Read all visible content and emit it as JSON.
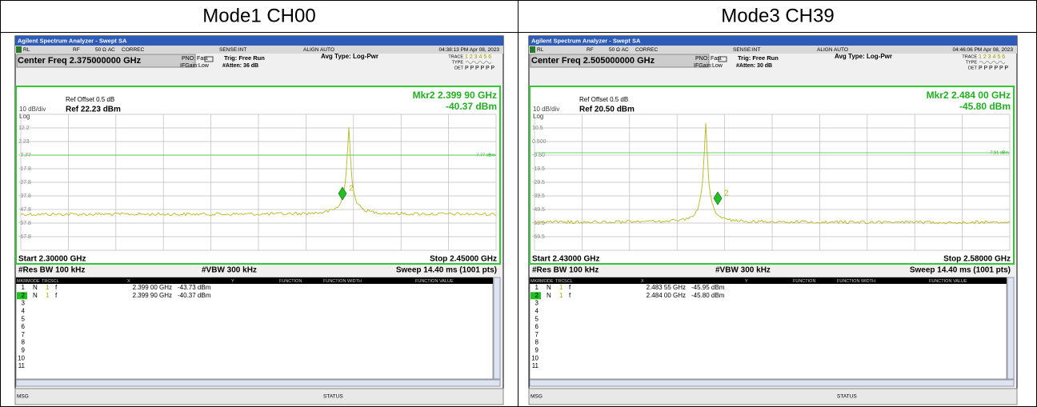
{
  "headers": [
    "Mode1 CH00",
    "Mode3 CH39"
  ],
  "panels": [
    {
      "title_bar": "Agilent Spectrum Analyzer - Swept SA",
      "status": [
        "RL",
        "RF",
        "50 Ω  AC",
        "CORREC",
        "SENSE:INT",
        "ALIGN AUTO",
        "04:38:13 PM Apr 08, 2023"
      ],
      "center_freq": "Center Freq 2.375000000 GHz",
      "pno": "PNO: Fast",
      "ifgain": "IFGain:Low",
      "trig": "Trig: Free Run",
      "atten": "#Atten: 36 dB",
      "avg_type": "Avg Type: Log-Pwr",
      "trace_label": "TRACE",
      "trace_nums": "1 2 3 4 5 6",
      "type_label": "TYPE",
      "det_label": "DET",
      "det": "P P P P P P",
      "ref_offset": "Ref Offset 0.5 dB",
      "scale": "10 dB/div",
      "ref": "Ref 22.23 dBm",
      "log": "Log",
      "marker_freq": "Mkr2 2.399 90 GHz",
      "marker_amp": "-40.37 dBm",
      "marker_num": "2",
      "y_labels": [
        "12.2",
        "2.23",
        "-7.77",
        "-17.8",
        "-27.8",
        "-37.8",
        "-47.8",
        "-57.8",
        "-67.8"
      ],
      "display_line": "-7.77 dBm",
      "start": "Start 2.30000 GHz",
      "stop": "Stop 2.45000 GHz",
      "res_bw": "#Res BW 100 kHz",
      "vbw": "#VBW 300 kHz",
      "sweep": "Sweep  14.40 ms (1001 pts)",
      "table": {
        "columns": [
          "MKR",
          "MODE",
          "TRC",
          "SCL",
          "X",
          "Y",
          "FUNCTION",
          "FUNCTION WIDTH",
          "FUNCTION VALUE"
        ],
        "rows": [
          [
            "1",
            "N",
            "1",
            "f",
            "2.399 00 GHz",
            "-43.73 dBm"
          ],
          [
            "2",
            "N",
            "1",
            "f",
            "2.399 90 GHz",
            "-40.37 dBm"
          ],
          [
            "3"
          ],
          [
            "4"
          ],
          [
            "5"
          ],
          [
            "6"
          ],
          [
            "7"
          ],
          [
            "8"
          ],
          [
            "9"
          ],
          [
            "10"
          ],
          [
            "11"
          ]
        ]
      },
      "msg": "MSG",
      "status_label": "STATUS"
    },
    {
      "title_bar": "Agilent Spectrum Analyzer - Swept SA",
      "status": [
        "RL",
        "RF",
        "50 Ω  AC",
        "CORREC",
        "SENSE:INT",
        "ALIGN AUTO",
        "04:46:06 PM Apr 08, 2023"
      ],
      "center_freq": "Center Freq 2.505000000 GHz",
      "pno": "PNO: Fast",
      "ifgain": "IFGain:Low",
      "trig": "Trig: Free Run",
      "atten": "#Atten: 30 dB",
      "avg_type": "Avg Type: Log-Pwr",
      "trace_label": "TRACE",
      "trace_nums": "1 2 3 4 5 6",
      "type_label": "TYPE",
      "det_label": "DET",
      "det": "P P P P P P",
      "ref_offset": "Ref Offset 0.5 dB",
      "scale": "10 dB/div",
      "ref": "Ref 20.50 dBm",
      "log": "Log",
      "marker_freq": "Mkr2 2.484 00 GHz",
      "marker_amp": "-45.80 dBm",
      "marker_num": "2",
      "y_labels": [
        "10.5",
        "0.500",
        "-9.50",
        "-19.5",
        "-29.5",
        "-39.5",
        "-49.5",
        "-59.5",
        "-69.5"
      ],
      "display_line": "-7.91 dBm",
      "start": "Start 2.43000 GHz",
      "stop": "Stop 2.58000 GHz",
      "res_bw": "#Res BW 100 kHz",
      "vbw": "#VBW 300 kHz",
      "sweep": "Sweep  14.40 ms (1001 pts)",
      "table": {
        "columns": [
          "MKR",
          "MODE",
          "TRC",
          "SCL",
          "X",
          "Y",
          "FUNCTION",
          "FUNCTION WIDTH",
          "FUNCTION VALUE"
        ],
        "rows": [
          [
            "1",
            "N",
            "1",
            "f",
            "2.483 55 GHz",
            "-45.95 dBm"
          ],
          [
            "2",
            "N",
            "1",
            "f",
            "2.484 00 GHz",
            "-45.80 dBm"
          ],
          [
            "3"
          ],
          [
            "4"
          ],
          [
            "5"
          ],
          [
            "6"
          ],
          [
            "7"
          ],
          [
            "8"
          ],
          [
            "9"
          ],
          [
            "10"
          ],
          [
            "11"
          ]
        ]
      },
      "msg": "MSG",
      "status_label": "STATUS"
    }
  ]
}
